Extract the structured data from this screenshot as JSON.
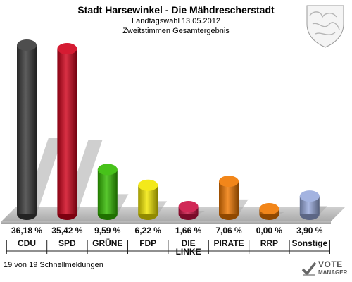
{
  "header": {
    "title": "Stadt Harsewinkel - Die Mähdrescherstadt",
    "subtitle1": "Landtagswahl 13.05.2012",
    "subtitle2": "Zweitstimmen Gesamtergebnis"
  },
  "footer": {
    "reports": "19 von 19 Schnellmeldungen",
    "logo_line1": "VOTE",
    "logo_line2": "MANAGER"
  },
  "chart_data": {
    "type": "bar",
    "title": "Stadt Harsewinkel - Die Mähdrescherstadt",
    "categories": [
      "CDU",
      "SPD",
      "GRÜNE",
      "FDP",
      "DIE LINKE",
      "PIRATE",
      "RRP",
      "Sonstige"
    ],
    "values": [
      36.18,
      35.42,
      9.59,
      6.22,
      1.66,
      7.06,
      0.0,
      3.9
    ],
    "value_labels": [
      "36,18 %",
      "35,42 %",
      "9,59 %",
      "6,22 %",
      "1,66 %",
      "7,06 %",
      "0,00 %",
      "3,90 %"
    ],
    "category_labels": [
      [
        "CDU"
      ],
      [
        "SPD"
      ],
      [
        "GRÜNE"
      ],
      [
        "FDP"
      ],
      [
        "DIE",
        "LINKE"
      ],
      [
        "PIRATE"
      ],
      [
        "RRP"
      ],
      [
        "Sonstige"
      ]
    ],
    "colors": [
      "#3a3a3a",
      "#d0021b",
      "#33bb00",
      "#f2e600",
      "#cc1144",
      "#f07800",
      "#f07800",
      "#99aadd"
    ],
    "ylim": [
      0,
      36.18
    ]
  }
}
